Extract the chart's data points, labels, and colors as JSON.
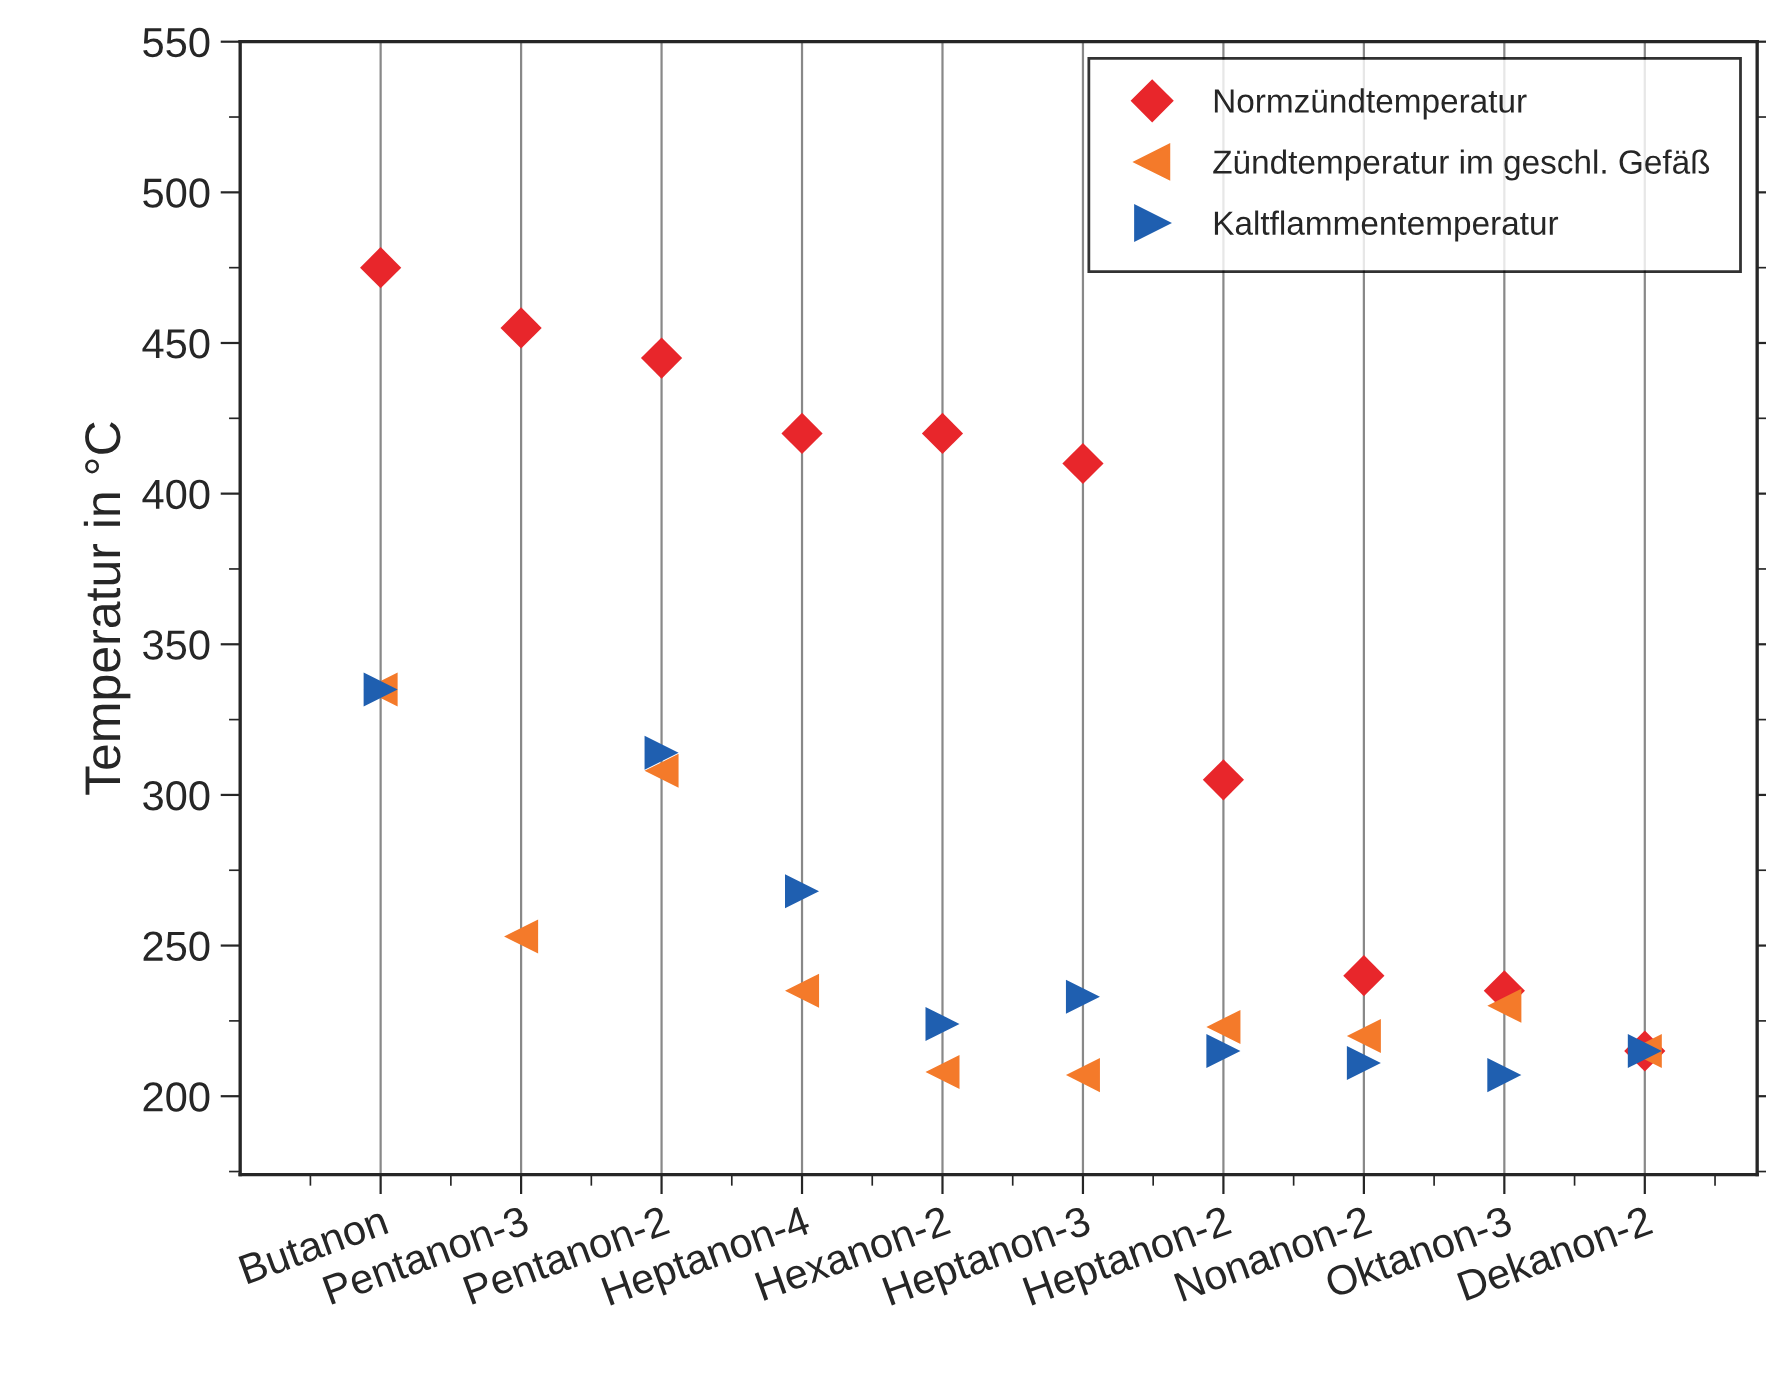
{
  "chart_data": {
    "type": "scatter",
    "ylabel": "Temperatur in °C",
    "categories": [
      "Butanon",
      "Pentanon-3",
      "Pentanon-2",
      "Heptanon-4",
      "Hexanon-2",
      "Heptanon-3",
      "Heptanon-2",
      "Nonanon-2",
      "Oktanon-3",
      "Dekanon-2"
    ],
    "series": [
      {
        "name": "Normzündtemperatur",
        "color": "#e8262b",
        "marker": "diamond",
        "values": [
          475,
          455,
          445,
          420,
          420,
          410,
          305,
          240,
          235,
          215
        ]
      },
      {
        "name": "Zündtemperatur im geschl. Gefäß",
        "color": "#f47a2a",
        "marker": "triangle_left",
        "values": [
          335,
          253,
          308,
          235,
          208,
          207,
          223,
          220,
          230,
          215
        ]
      },
      {
        "name": "Kaltflammentemperatur",
        "color": "#1f5fb0",
        "marker": "triangle_right",
        "values": [
          335,
          null,
          314,
          268,
          224,
          233,
          215,
          211,
          207,
          215
        ]
      }
    ],
    "ylim": [
      174,
      550
    ],
    "yticks": [
      200,
      250,
      300,
      350,
      400,
      450,
      500,
      550
    ],
    "grid": "x",
    "legend": "top right"
  }
}
